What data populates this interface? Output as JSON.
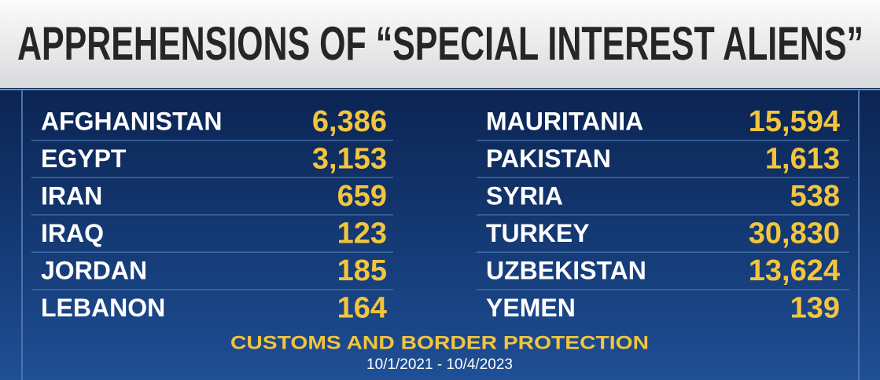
{
  "title": "APPREHENSIONS OF “SPECIAL INTEREST ALIENS”",
  "table": {
    "rows": [
      [
        "AFGHANISTAN",
        "6,386",
        "MAURITANIA",
        "15,594"
      ],
      [
        "EGYPT",
        "3,153",
        "PAKISTAN",
        "1,613"
      ],
      [
        "IRAN",
        "659",
        "SYRIA",
        "538"
      ],
      [
        "IRAQ",
        "123",
        "TURKEY",
        "30,830"
      ],
      [
        "JORDAN",
        "185",
        "UZBEKISTAN",
        "13,624"
      ],
      [
        "LEBANON",
        "164",
        "YEMEN",
        "139"
      ]
    ]
  },
  "footer": {
    "source": "CUSTOMS AND BORDER PROTECTION",
    "dates": "10/1/2021 - 10/4/2023"
  }
}
